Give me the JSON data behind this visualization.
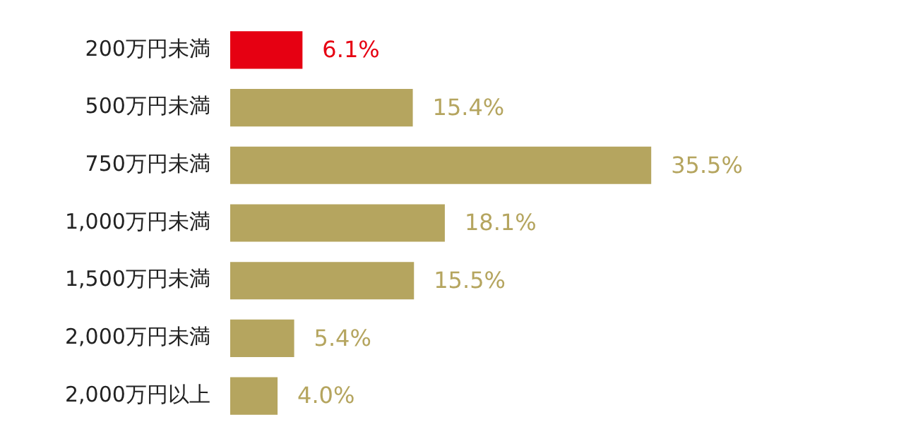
{
  "chart_data": {
    "type": "bar",
    "orientation": "horizontal",
    "categories": [
      "200万円未満",
      "500万円未満",
      "750万円未満",
      "1,000万円未満",
      "1,500万円未満",
      "2,000万円未満",
      "2,000万円以上"
    ],
    "values": [
      6.1,
      15.4,
      35.5,
      18.1,
      15.5,
      5.4,
      4.0
    ],
    "colors": [
      "#e60012",
      "#b5a55f",
      "#b5a55f",
      "#b5a55f",
      "#b5a55f",
      "#b5a55f",
      "#b5a55f"
    ],
    "value_labels": [
      "6.1%",
      "15.4%",
      "35.5%",
      "18.1%",
      "15.5%",
      "5.4%",
      "4.0%"
    ],
    "legend": false
  }
}
